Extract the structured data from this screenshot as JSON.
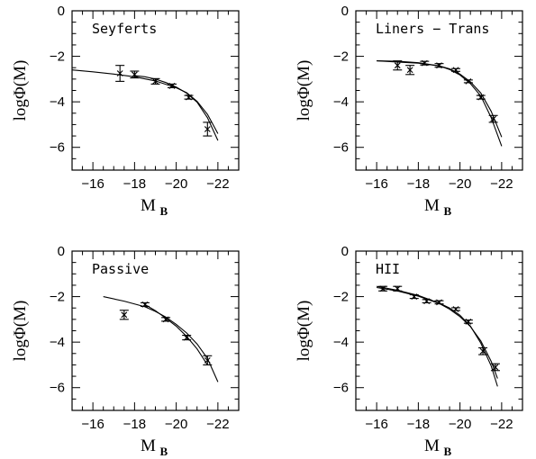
{
  "chart_data": [
    {
      "type": "scatter",
      "title": "Seyferts",
      "xlabel": "M",
      "xlabel_sub": "B",
      "ylabel": "logΦ(M)",
      "xlim": [
        -15,
        -23
      ],
      "ylim": [
        -7,
        0
      ],
      "x_ticks": [
        -16,
        -18,
        -20,
        -22
      ],
      "y_ticks": [
        0,
        -2,
        -4,
        -6
      ],
      "x_tick_labels": [
        "−16",
        "−18",
        "−20",
        "−22"
      ],
      "y_tick_labels": [
        "0",
        "−2",
        "−4",
        "−6"
      ],
      "points": [
        {
          "x": -17.3,
          "y": -2.75,
          "err": 0.35
        },
        {
          "x": -18.0,
          "y": -2.8,
          "err": 0.15
        },
        {
          "x": -19.0,
          "y": -3.1,
          "err": 0.12
        },
        {
          "x": -19.8,
          "y": -3.3,
          "err": 0.08
        },
        {
          "x": -20.6,
          "y": -3.8,
          "err": 0.08
        },
        {
          "x": -21.5,
          "y": -5.2,
          "err": 0.3
        }
      ],
      "curves": [
        [
          [
            -15.0,
            -2.6
          ],
          [
            -16.0,
            -2.68
          ],
          [
            -17.0,
            -2.78
          ],
          [
            -18.0,
            -2.9
          ],
          [
            -19.0,
            -3.08
          ],
          [
            -20.0,
            -3.38
          ],
          [
            -20.5,
            -3.6
          ],
          [
            -21.0,
            -3.98
          ],
          [
            -21.5,
            -4.55
          ],
          [
            -22.0,
            -5.4
          ]
        ],
        [
          [
            -18.0,
            -2.85
          ],
          [
            -18.5,
            -2.9
          ],
          [
            -19.0,
            -3.0
          ],
          [
            -19.5,
            -3.15
          ],
          [
            -20.0,
            -3.35
          ],
          [
            -20.5,
            -3.62
          ],
          [
            -21.0,
            -4.02
          ],
          [
            -21.5,
            -4.7
          ],
          [
            -22.0,
            -5.7
          ]
        ]
      ]
    },
    {
      "type": "scatter",
      "title": "Liners − Trans",
      "xlabel": "M",
      "xlabel_sub": "B",
      "ylabel": "logΦ(M)",
      "xlim": [
        -15,
        -23
      ],
      "ylim": [
        -7,
        0
      ],
      "x_ticks": [
        -16,
        -18,
        -20,
        -22
      ],
      "y_ticks": [
        0,
        -2,
        -4,
        -6
      ],
      "x_tick_labels": [
        "−16",
        "−18",
        "−20",
        "−22"
      ],
      "y_tick_labels": [
        "0",
        "−2",
        "−4",
        "−6"
      ],
      "points": [
        {
          "x": -17.0,
          "y": -2.4,
          "err": 0.2
        },
        {
          "x": -17.6,
          "y": -2.6,
          "err": 0.2
        },
        {
          "x": -18.3,
          "y": -2.3,
          "err": 0.08
        },
        {
          "x": -19.0,
          "y": -2.4,
          "err": 0.08
        },
        {
          "x": -19.8,
          "y": -2.6,
          "err": 0.06
        },
        {
          "x": -20.4,
          "y": -3.1,
          "err": 0.06
        },
        {
          "x": -21.0,
          "y": -3.8,
          "err": 0.08
        },
        {
          "x": -21.6,
          "y": -4.75,
          "err": 0.15
        }
      ],
      "curves": [
        [
          [
            -16.0,
            -2.2
          ],
          [
            -17.0,
            -2.25
          ],
          [
            -18.0,
            -2.3
          ],
          [
            -19.0,
            -2.42
          ],
          [
            -19.5,
            -2.55
          ],
          [
            -20.0,
            -2.78
          ],
          [
            -20.5,
            -3.12
          ],
          [
            -21.0,
            -3.62
          ],
          [
            -21.5,
            -4.42
          ],
          [
            -22.0,
            -5.55
          ]
        ],
        [
          [
            -16.0,
            -2.2
          ],
          [
            -17.0,
            -2.22
          ],
          [
            -18.0,
            -2.28
          ],
          [
            -19.0,
            -2.42
          ],
          [
            -19.5,
            -2.58
          ],
          [
            -20.0,
            -2.82
          ],
          [
            -20.5,
            -3.2
          ],
          [
            -21.0,
            -3.75
          ],
          [
            -21.5,
            -4.7
          ],
          [
            -22.0,
            -5.95
          ]
        ]
      ]
    },
    {
      "type": "scatter",
      "title": "Passive",
      "xlabel": "M",
      "xlabel_sub": "B",
      "ylabel": "logΦ(M)",
      "xlim": [
        -15,
        -23
      ],
      "ylim": [
        -7,
        0
      ],
      "x_ticks": [
        -16,
        -18,
        -20,
        -22
      ],
      "y_ticks": [
        0,
        -2,
        -4,
        -6
      ],
      "x_tick_labels": [
        "−16",
        "−18",
        "−20",
        "−22"
      ],
      "y_tick_labels": [
        "0",
        "−2",
        "−4",
        "−6"
      ],
      "points": [
        {
          "x": -17.5,
          "y": -2.8,
          "err": 0.2
        },
        {
          "x": -18.5,
          "y": -2.35,
          "err": 0.08
        },
        {
          "x": -19.5,
          "y": -3.0,
          "err": 0.08
        },
        {
          "x": -20.5,
          "y": -3.8,
          "err": 0.1
        },
        {
          "x": -21.5,
          "y": -4.8,
          "err": 0.2
        }
      ],
      "curves": [
        [
          [
            -16.5,
            -2.0
          ],
          [
            -17.5,
            -2.2
          ],
          [
            -18.5,
            -2.45
          ],
          [
            -19.0,
            -2.65
          ],
          [
            -19.5,
            -2.9
          ],
          [
            -20.0,
            -3.22
          ],
          [
            -20.5,
            -3.6
          ],
          [
            -21.0,
            -4.08
          ],
          [
            -21.5,
            -4.72
          ],
          [
            -22.0,
            -5.75
          ]
        ],
        [
          [
            -18.5,
            -2.35
          ],
          [
            -19.0,
            -2.62
          ],
          [
            -19.5,
            -2.95
          ],
          [
            -20.0,
            -3.3
          ],
          [
            -20.5,
            -3.75
          ],
          [
            -21.0,
            -4.3
          ],
          [
            -21.5,
            -5.0
          ]
        ]
      ]
    },
    {
      "type": "scatter",
      "title": "HII",
      "xlabel": "M",
      "xlabel_sub": "B",
      "ylabel": "logΦ(M)",
      "xlim": [
        -15,
        -23
      ],
      "ylim": [
        -7,
        0
      ],
      "x_ticks": [
        -16,
        -18,
        -20,
        -22
      ],
      "y_ticks": [
        0,
        -2,
        -4,
        -6
      ],
      "x_tick_labels": [
        "−16",
        "−18",
        "−20",
        "−22"
      ],
      "y_tick_labels": [
        "0",
        "−2",
        "−4",
        "−6"
      ],
      "points": [
        {
          "x": -16.3,
          "y": -1.65,
          "err": 0.1
        },
        {
          "x": -17.0,
          "y": -1.65,
          "err": 0.1
        },
        {
          "x": -17.8,
          "y": -2.0,
          "err": 0.08
        },
        {
          "x": -18.4,
          "y": -2.2,
          "err": 0.07
        },
        {
          "x": -19.0,
          "y": -2.25,
          "err": 0.07
        },
        {
          "x": -19.8,
          "y": -2.55,
          "err": 0.06
        },
        {
          "x": -20.4,
          "y": -3.1,
          "err": 0.07
        },
        {
          "x": -21.1,
          "y": -4.4,
          "err": 0.15
        },
        {
          "x": -21.7,
          "y": -5.1,
          "err": 0.15
        }
      ],
      "curves": [
        [
          [
            -16.0,
            -1.6
          ],
          [
            -17.0,
            -1.75
          ],
          [
            -18.0,
            -1.98
          ],
          [
            -19.0,
            -2.3
          ],
          [
            -19.5,
            -2.55
          ],
          [
            -20.0,
            -2.88
          ],
          [
            -20.5,
            -3.32
          ],
          [
            -21.0,
            -3.95
          ],
          [
            -21.5,
            -4.85
          ],
          [
            -21.8,
            -5.6
          ]
        ],
        [
          [
            -16.0,
            -1.55
          ],
          [
            -17.0,
            -1.72
          ],
          [
            -18.0,
            -1.95
          ],
          [
            -19.0,
            -2.28
          ],
          [
            -19.5,
            -2.5
          ],
          [
            -20.0,
            -2.82
          ],
          [
            -20.5,
            -3.3
          ],
          [
            -21.0,
            -4.05
          ],
          [
            -21.5,
            -5.05
          ],
          [
            -21.8,
            -5.95
          ]
        ]
      ]
    }
  ]
}
